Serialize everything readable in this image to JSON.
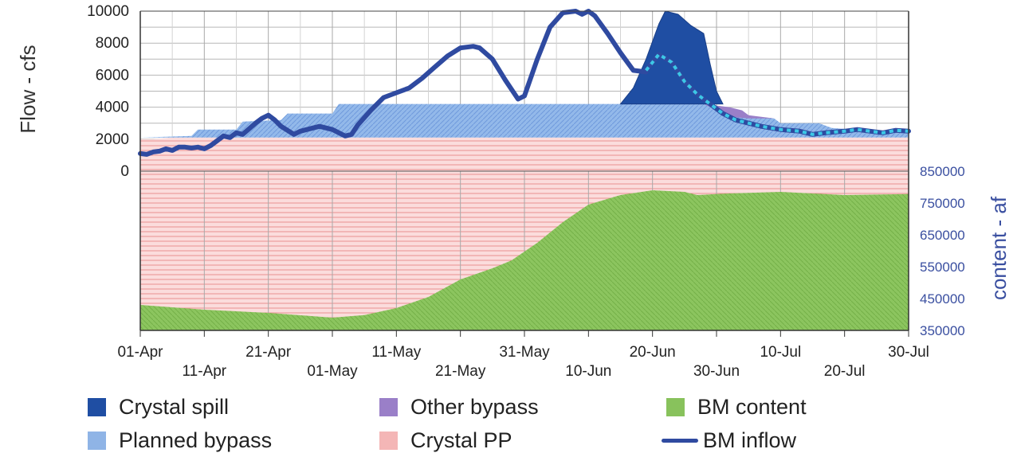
{
  "chart_data": {
    "type": "area",
    "title": "",
    "ylabel_left": "Flow - cfs",
    "ylabel_right": "content - af",
    "y_left": {
      "min": 0,
      "max": 10000,
      "ticks": [
        "0",
        "2000",
        "4000",
        "6000",
        "8000",
        "10000"
      ]
    },
    "y_right": {
      "min": 350000,
      "max": 850000,
      "ticks": [
        "350000",
        "450000",
        "550000",
        "650000",
        "750000",
        "850000"
      ]
    },
    "x": {
      "start": "01-Apr",
      "end": "30-Jul",
      "unit": "day"
    },
    "x_ticks": [
      {
        "label": "01-Apr",
        "day": 0,
        "row": 1
      },
      {
        "label": "11-Apr",
        "day": 10,
        "row": 2
      },
      {
        "label": "21-Apr",
        "day": 20,
        "row": 1
      },
      {
        "label": "01-May",
        "day": 30,
        "row": 2
      },
      {
        "label": "11-May",
        "day": 40,
        "row": 1
      },
      {
        "label": "21-May",
        "day": 50,
        "row": 2
      },
      {
        "label": "31-May",
        "day": 60,
        "row": 1
      },
      {
        "label": "10-Jun",
        "day": 70,
        "row": 2
      },
      {
        "label": "20-Jun",
        "day": 80,
        "row": 1
      },
      {
        "label": "30-Jun",
        "day": 90,
        "row": 2
      },
      {
        "label": "10-Jul",
        "day": 100,
        "row": 1
      },
      {
        "label": "20-Jul",
        "day": 110,
        "row": 2
      },
      {
        "label": "30-Jul",
        "day": 120,
        "row": 1
      }
    ],
    "series": [
      {
        "name": "Crystal PP",
        "axis": "left",
        "color": "#f4b6b6",
        "points": [
          [
            0,
            2000
          ],
          [
            2,
            2000
          ],
          [
            5,
            2100
          ],
          [
            15,
            2100
          ],
          [
            20,
            2100
          ],
          [
            50,
            2100
          ],
          [
            80,
            2100
          ],
          [
            100,
            2100
          ],
          [
            120,
            2100
          ]
        ]
      },
      {
        "name": "Planned bypass",
        "axis": "left",
        "color": "#8fb4e6",
        "points": [
          [
            0,
            2100
          ],
          [
            8,
            2200
          ],
          [
            9,
            2600
          ],
          [
            15,
            2600
          ],
          [
            16,
            3100
          ],
          [
            22,
            3200
          ],
          [
            23,
            3600
          ],
          [
            30,
            3600
          ],
          [
            31,
            4200
          ],
          [
            80,
            4200
          ],
          [
            88,
            4200
          ],
          [
            94,
            3500
          ],
          [
            99,
            3300
          ],
          [
            100,
            3000
          ],
          [
            106,
            3000
          ],
          [
            108,
            2700
          ],
          [
            115,
            2500
          ],
          [
            120,
            2400
          ]
        ]
      },
      {
        "name": "Other bypass",
        "axis": "left",
        "color": "#9a7fc8",
        "points": [
          [
            88,
            4200
          ],
          [
            92,
            4000
          ],
          [
            94,
            3800
          ],
          [
            95,
            3500
          ],
          [
            99,
            3300
          ]
        ]
      },
      {
        "name": "Crystal spill",
        "axis": "left",
        "color": "#1f4ea3",
        "points": [
          [
            75,
            4200
          ],
          [
            77,
            5200
          ],
          [
            79,
            7000
          ],
          [
            81,
            9200
          ],
          [
            82,
            10000
          ],
          [
            84,
            9800
          ],
          [
            86,
            9100
          ],
          [
            88,
            8600
          ],
          [
            89,
            6700
          ],
          [
            90,
            5000
          ],
          [
            91,
            4200
          ]
        ]
      },
      {
        "name": "BM content",
        "axis": "right",
        "color": "#88c25c",
        "points": [
          [
            0,
            430000
          ],
          [
            10,
            415000
          ],
          [
            20,
            405000
          ],
          [
            30,
            390000
          ],
          [
            35,
            398000
          ],
          [
            40,
            420000
          ],
          [
            45,
            455000
          ],
          [
            50,
            510000
          ],
          [
            55,
            545000
          ],
          [
            58,
            570000
          ],
          [
            62,
            625000
          ],
          [
            66,
            690000
          ],
          [
            70,
            745000
          ],
          [
            75,
            775000
          ],
          [
            80,
            790000
          ],
          [
            85,
            785000
          ],
          [
            87,
            775000
          ],
          [
            92,
            780000
          ],
          [
            100,
            785000
          ],
          [
            110,
            775000
          ],
          [
            120,
            778000
          ]
        ]
      },
      {
        "name": "BM inflow",
        "axis": "left",
        "color": "#2f4aa0",
        "points": [
          [
            0,
            1100
          ],
          [
            1,
            1050
          ],
          [
            2,
            1200
          ],
          [
            3,
            1250
          ],
          [
            4,
            1400
          ],
          [
            5,
            1300
          ],
          [
            6,
            1500
          ],
          [
            7,
            1500
          ],
          [
            8,
            1450
          ],
          [
            9,
            1500
          ],
          [
            10,
            1400
          ],
          [
            11,
            1600
          ],
          [
            12,
            1900
          ],
          [
            13,
            2200
          ],
          [
            14,
            2100
          ],
          [
            15,
            2400
          ],
          [
            16,
            2300
          ],
          [
            18,
            3000
          ],
          [
            19,
            3300
          ],
          [
            20,
            3500
          ],
          [
            21,
            3200
          ],
          [
            22,
            2800
          ],
          [
            24,
            2300
          ],
          [
            25,
            2500
          ],
          [
            27,
            2700
          ],
          [
            28,
            2800
          ],
          [
            30,
            2600
          ],
          [
            32,
            2200
          ],
          [
            33,
            2300
          ],
          [
            34,
            2900
          ],
          [
            36,
            3800
          ],
          [
            38,
            4600
          ],
          [
            40,
            4900
          ],
          [
            42,
            5200
          ],
          [
            44,
            5800
          ],
          [
            46,
            6500
          ],
          [
            48,
            7200
          ],
          [
            50,
            7700
          ],
          [
            52,
            7800
          ],
          [
            53,
            7700
          ],
          [
            55,
            7000
          ],
          [
            57,
            5700
          ],
          [
            59,
            4500
          ],
          [
            60,
            4700
          ],
          [
            62,
            7000
          ],
          [
            64,
            9000
          ],
          [
            66,
            9900
          ],
          [
            68,
            10000
          ],
          [
            69,
            9800
          ],
          [
            70,
            10000
          ],
          [
            71,
            9700
          ],
          [
            73,
            8600
          ],
          [
            75,
            7400
          ],
          [
            77,
            6300
          ],
          [
            79,
            6200
          ]
        ]
      },
      {
        "name": "BM inflow (continued, dotted)",
        "axis": "left",
        "color": "#3cc8e6",
        "points": [
          [
            79,
            6300
          ],
          [
            81,
            7300
          ],
          [
            83,
            6800
          ],
          [
            85,
            5600
          ],
          [
            87,
            4800
          ],
          [
            89,
            4200
          ],
          [
            91,
            3600
          ],
          [
            93,
            3200
          ],
          [
            95,
            3000
          ],
          [
            97,
            2800
          ],
          [
            100,
            2600
          ],
          [
            103,
            2500
          ],
          [
            105,
            2300
          ],
          [
            107,
            2400
          ],
          [
            110,
            2500
          ],
          [
            112,
            2600
          ],
          [
            114,
            2500
          ],
          [
            116,
            2400
          ],
          [
            118,
            2550
          ],
          [
            120,
            2500
          ]
        ]
      }
    ],
    "legend": {
      "placement": "bottom",
      "items": [
        {
          "label": "Crystal spill",
          "color": "#1f4ea3",
          "kind": "square"
        },
        {
          "label": "Other bypass",
          "color": "#9a7fc8",
          "kind": "square"
        },
        {
          "label": "BM content",
          "color": "#88c25c",
          "kind": "square"
        },
        {
          "label": "Planned bypass",
          "color": "#8fb4e6",
          "kind": "square"
        },
        {
          "label": "Crystal PP",
          "color": "#f4b6b6",
          "kind": "square"
        },
        {
          "label": "BM inflow",
          "color": "#2f4aa0",
          "kind": "line"
        }
      ]
    }
  }
}
